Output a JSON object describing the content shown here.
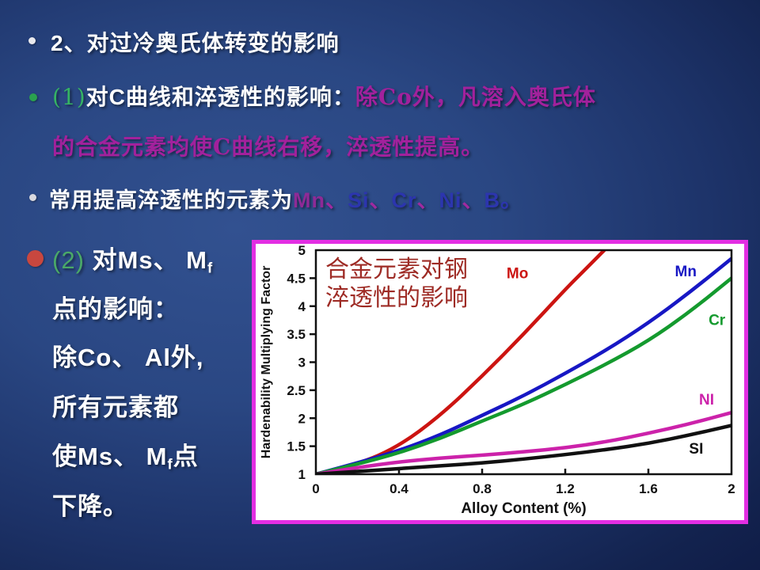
{
  "slide": {
    "background": {
      "center_color": "#325190",
      "edge_color": "#0e1a44"
    },
    "accent_colors": {
      "magenta_text": "#a2219c",
      "green_label": "#35b364",
      "blue_elements": "#2c35ae",
      "chart_border": "#e32ee3",
      "red_bullet": "#c8473f"
    },
    "bullets": [
      {
        "id": "line1",
        "segments": [
          {
            "text": "2、对过冷奥氏体转变的影响",
            "color": "#ffffff",
            "bold": true
          }
        ]
      },
      {
        "id": "line2",
        "segments": [
          {
            "text": "(1)",
            "color": "#35b364",
            "serif": true
          },
          {
            "text": "对C曲线和淬透性的影响：",
            "color": "#ffffff",
            "bold": true
          },
          {
            "text": "除Co外，凡溶入奥氏体",
            "color": "#a2219c",
            "bold": true,
            "serif": true
          }
        ]
      },
      {
        "id": "line3",
        "segments": [
          {
            "text": "的合金元素均使C曲线右移，淬透性提高。",
            "color": "#a2219c",
            "bold": true,
            "serif": true
          }
        ]
      },
      {
        "id": "line4",
        "segments": [
          {
            "text": "常用提高淬透性的元素为",
            "color": "#ffffff",
            "bold": true
          },
          {
            "text": "Mn",
            "color": "#8e2a96",
            "bold": true
          },
          {
            "text": "、",
            "color": "#a02aa0",
            "bold": true
          },
          {
            "text": "Si",
            "color": "#2c35ae",
            "bold": true
          },
          {
            "text": "、",
            "color": "#a02aa0",
            "bold": true
          },
          {
            "text": "Cr",
            "color": "#2c35ae",
            "bold": true
          },
          {
            "text": "、",
            "color": "#a02aa0",
            "bold": true
          },
          {
            "text": "Ni",
            "color": "#2c35ae",
            "bold": true
          },
          {
            "text": "、",
            "color": "#a02aa0",
            "bold": true
          },
          {
            "text": "B",
            "color": "#2c35ae",
            "bold": true
          },
          {
            "text": "。",
            "color": "#2c35ae",
            "bold": true
          }
        ]
      }
    ],
    "item2": {
      "lines": [
        {
          "segments": [
            {
              "text": "(2) ",
              "color": "#4aa968"
            },
            {
              "text": "对Ms、 M",
              "color": "#ffffff",
              "bold": true
            },
            {
              "text": "f",
              "color": "#ffffff",
              "bold": true,
              "sub": true
            }
          ]
        },
        {
          "segments": [
            {
              "text": "点的影响：",
              "color": "#ffffff",
              "bold": true
            }
          ]
        },
        {
          "segments": [
            {
              "text": "除Co、 Al外,",
              "color": "#ffffff",
              "bold": true
            }
          ]
        },
        {
          "segments": [
            {
              "text": "所有元素都",
              "color": "#ffffff",
              "bold": true
            }
          ]
        },
        {
          "segments": [
            {
              "text": "使Ms、 M",
              "color": "#ffffff",
              "bold": true
            },
            {
              "text": "f",
              "color": "#ffffff",
              "bold": true,
              "sub": true
            },
            {
              "text": "点",
              "color": "#ffffff",
              "bold": true
            }
          ]
        },
        {
          "segments": [
            {
              "text": "下降。",
              "color": "#ffffff",
              "bold": true
            }
          ]
        }
      ]
    }
  },
  "chart_data": {
    "type": "line",
    "title": "合金元素对钢淬透性的影响",
    "title_lines": [
      "合金元素对钢",
      "淬透性的影响"
    ],
    "title_color": "#9e2b25",
    "xlabel": "Alloy Content (%)",
    "ylabel": "Hardenability Multiplying Factor",
    "xlim": [
      0,
      2
    ],
    "ylim": [
      1,
      5
    ],
    "xticks": [
      0,
      0.4,
      0.8,
      1.2,
      1.6,
      2
    ],
    "yticks": [
      1,
      1.5,
      2,
      2.5,
      3,
      3.5,
      4,
      4.5,
      5
    ],
    "grid": false,
    "legend_position": "inline-labels",
    "series": [
      {
        "name": "Mo",
        "color": "#cc1411",
        "x": [
          0,
          0.2,
          0.4,
          0.6,
          0.8,
          1.0,
          1.2,
          1.3,
          1.42
        ],
        "y": [
          1,
          1.17,
          1.5,
          2.05,
          2.75,
          3.5,
          4.3,
          4.67,
          5.12
        ]
      },
      {
        "name": "Mn",
        "color": "#1717c4",
        "x": [
          0,
          0.2,
          0.4,
          0.6,
          0.8,
          1.0,
          1.2,
          1.4,
          1.6,
          1.8,
          2.0
        ],
        "y": [
          1,
          1.2,
          1.42,
          1.7,
          2.05,
          2.4,
          2.8,
          3.22,
          3.7,
          4.25,
          4.85
        ]
      },
      {
        "name": "Cr",
        "color": "#149a2e",
        "x": [
          0,
          0.2,
          0.4,
          0.6,
          0.8,
          1.0,
          1.2,
          1.4,
          1.6,
          1.8,
          2.0
        ],
        "y": [
          1,
          1.18,
          1.38,
          1.64,
          1.95,
          2.25,
          2.6,
          2.97,
          3.38,
          3.9,
          4.5
        ]
      },
      {
        "name": "NI",
        "color": "#cc22aa",
        "x": [
          0,
          0.2,
          0.4,
          0.6,
          0.8,
          1.0,
          1.2,
          1.4,
          1.6,
          1.8,
          2.0
        ],
        "y": [
          1,
          1.12,
          1.22,
          1.29,
          1.34,
          1.4,
          1.47,
          1.58,
          1.73,
          1.9,
          2.1
        ]
      },
      {
        "name": "SI",
        "color": "#111111",
        "x": [
          0,
          0.2,
          0.4,
          0.6,
          0.8,
          1.0,
          1.2,
          1.4,
          1.6,
          1.8,
          2.0
        ],
        "y": [
          1,
          1.05,
          1.1,
          1.15,
          1.2,
          1.27,
          1.35,
          1.44,
          1.55,
          1.7,
          1.87
        ]
      }
    ],
    "series_labels": [
      {
        "name": "Mo",
        "x": 0.97,
        "y": 4.58
      },
      {
        "name": "Mn",
        "x": 1.78,
        "y": 4.62
      },
      {
        "name": "Cr",
        "x": 1.93,
        "y": 3.75
      },
      {
        "name": "NI",
        "x": 1.88,
        "y": 2.33
      },
      {
        "name": "SI",
        "x": 1.83,
        "y": 1.45
      }
    ]
  }
}
